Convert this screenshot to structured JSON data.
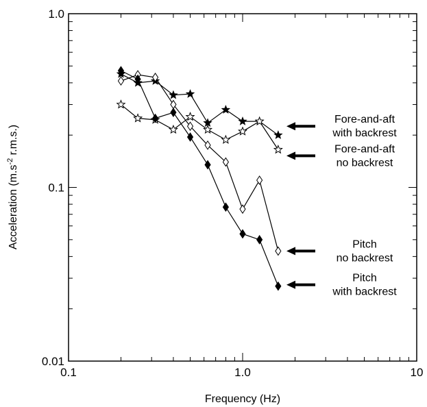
{
  "chart_data": {
    "type": "line",
    "title": "",
    "xlabel": "Frequency (Hz)",
    "ylabel": "Acceleration (m.s-2 r.m.s.)",
    "ylabel_parts": {
      "pre": "Acceleration (m.s",
      "sup": "-2",
      "post": " r.m.s.)"
    },
    "xscale": "log",
    "yscale": "log",
    "xlim": [
      0.1,
      10
    ],
    "ylim": [
      0.01,
      1.0
    ],
    "x_ticks": [
      {
        "value": 0.1,
        "label": "0.1"
      },
      {
        "value": 1,
        "label": "1.0"
      },
      {
        "value": 10,
        "label": "10"
      }
    ],
    "y_ticks": [
      {
        "value": 0.01,
        "label": "0.01"
      },
      {
        "value": 0.1,
        "label": "0.1"
      },
      {
        "value": 1,
        "label": "1.0"
      }
    ],
    "grid": false,
    "x": [
      0.2,
      0.25,
      0.315,
      0.4,
      0.5,
      0.63,
      0.8,
      1.0,
      1.25,
      1.6
    ],
    "series": [
      {
        "marker": "star-filled",
        "values": [
          0.45,
          0.4,
          0.41,
          0.34,
          0.345,
          0.235,
          0.28,
          0.24,
          0.24,
          0.2
        ]
      },
      {
        "marker": "star-open",
        "values": [
          0.3,
          0.25,
          0.245,
          0.215,
          0.255,
          0.215,
          0.188,
          0.21,
          0.24,
          0.165
        ]
      },
      {
        "marker": "diamond-open",
        "values": [
          0.41,
          0.445,
          0.43,
          0.3,
          0.225,
          0.175,
          0.14,
          0.075,
          0.11,
          0.043
        ]
      },
      {
        "marker": "diamond-filled",
        "values": [
          0.47,
          0.42,
          0.25,
          0.27,
          0.195,
          0.135,
          0.077,
          0.054,
          0.05,
          0.027
        ]
      }
    ],
    "annotations": [
      {
        "lines": [
          "Fore-and-aft",
          "with backrest"
        ],
        "arrow_y": 0.225
      },
      {
        "lines": [
          "Fore-and-aft",
          "no backrest"
        ],
        "arrow_y": 0.152
      },
      {
        "lines": [
          "Pitch",
          "no backrest"
        ],
        "arrow_y": 0.043
      },
      {
        "lines": [
          "Pitch",
          "with backrest"
        ],
        "arrow_y": 0.0275
      }
    ]
  }
}
